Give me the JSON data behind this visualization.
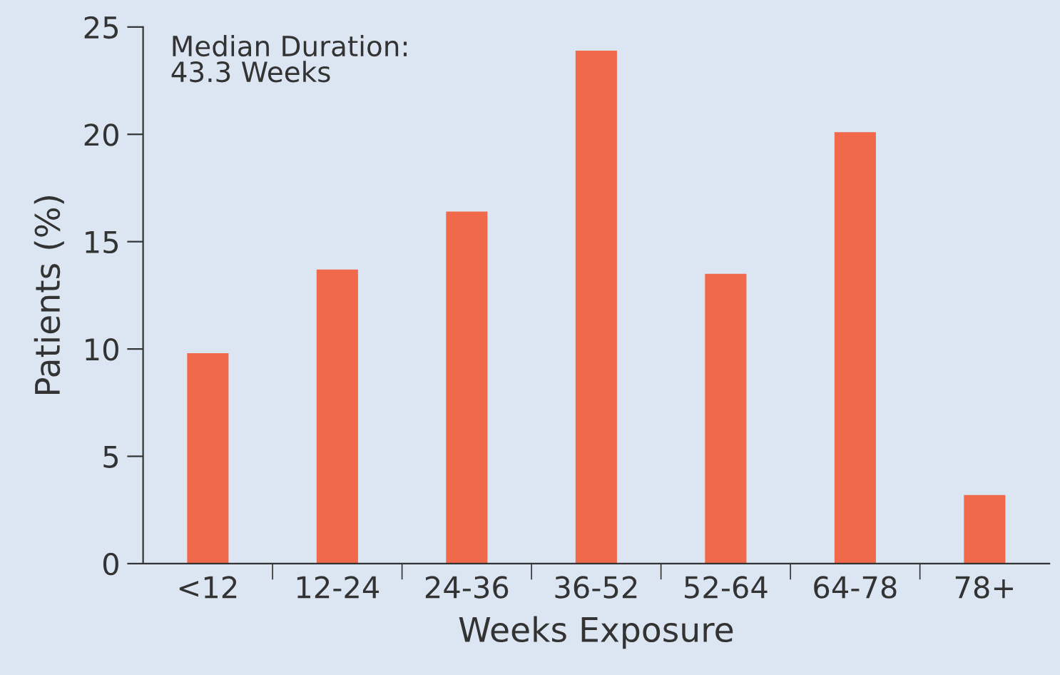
{
  "chart_data": {
    "type": "bar",
    "xlabel": "Weeks Exposure",
    "ylabel": "Patients (%)",
    "categories": [
      "<12",
      "12-24",
      "24-36",
      "36-52",
      "52-64",
      "64-78",
      "78+"
    ],
    "values": [
      9.8,
      13.7,
      16.4,
      23.9,
      13.5,
      20.1,
      3.2
    ],
    "color": "#f0694a",
    "ylim": [
      0,
      25
    ],
    "yticks": [
      0,
      5,
      10,
      15,
      20,
      25
    ],
    "grid": false,
    "legend": false,
    "annotations": [
      "Median Duration:\n43.3 Weeks"
    ]
  }
}
